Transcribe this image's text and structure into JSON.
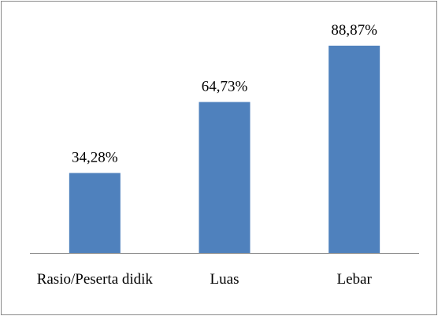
{
  "chart_data": {
    "type": "bar",
    "categories": [
      "Rasio/Peserta didik",
      "Luas",
      "Lebar"
    ],
    "values": [
      34.28,
      64.73,
      88.87
    ],
    "value_labels": [
      "34,28%",
      "64,73%",
      "88,87%"
    ],
    "color": "#4f81bd"
  }
}
